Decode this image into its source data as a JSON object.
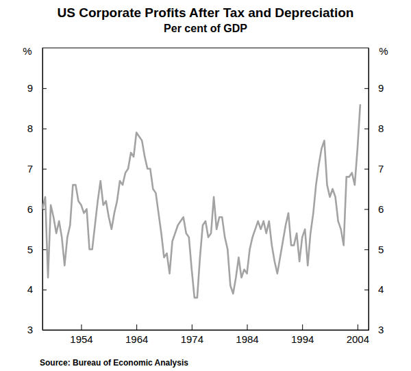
{
  "chart_data": {
    "type": "line",
    "title": "US Corporate Profits After Tax and Depreciation",
    "subtitle": "Per cent of GDP",
    "ylabel": "%",
    "source": "Source: Bureau of Economic Analysis",
    "color": "#a3a3a3",
    "grid": false,
    "xlim": [
      1947,
      2006
    ],
    "xticks": [
      1954,
      1964,
      1974,
      1984,
      1994,
      2004
    ],
    "ylim": [
      3,
      10
    ],
    "yticks": [
      3,
      4,
      5,
      6,
      7,
      8,
      9
    ],
    "x": [
      1947,
      1947.5,
      1948,
      1948.5,
      1949,
      1949.5,
      1950,
      1950.5,
      1951,
      1951.5,
      1952,
      1952.5,
      1953,
      1953.5,
      1954,
      1954.5,
      1955,
      1955.5,
      1956,
      1956.5,
      1957,
      1957.5,
      1958,
      1958.5,
      1959,
      1959.5,
      1960,
      1960.5,
      1961,
      1961.5,
      1962,
      1962.5,
      1963,
      1963.5,
      1964,
      1964.5,
      1965,
      1965.5,
      1966,
      1966.5,
      1967,
      1967.5,
      1968,
      1968.5,
      1969,
      1969.5,
      1970,
      1970.5,
      1971,
      1971.5,
      1972,
      1972.5,
      1973,
      1973.5,
      1974,
      1974.5,
      1975,
      1975.5,
      1976,
      1976.5,
      1977,
      1977.5,
      1978,
      1978.5,
      1979,
      1979.5,
      1980,
      1980.5,
      1981,
      1981.5,
      1982,
      1982.5,
      1983,
      1983.5,
      1984,
      1984.5,
      1985,
      1985.5,
      1986,
      1986.5,
      1987,
      1987.5,
      1988,
      1988.5,
      1989,
      1989.5,
      1990,
      1990.5,
      1991,
      1991.5,
      1992,
      1992.5,
      1993,
      1993.5,
      1994,
      1994.5,
      1995,
      1995.5,
      1996,
      1996.5,
      1997,
      1997.5,
      1998,
      1998.5,
      1999,
      1999.5,
      2000,
      2000.5,
      2001,
      2001.5,
      2002,
      2002.5,
      2003,
      2003.5,
      2004,
      2004.5
    ],
    "values": [
      6.0,
      6.3,
      4.3,
      6.1,
      5.8,
      5.4,
      5.7,
      5.3,
      4.6,
      5.3,
      5.6,
      6.6,
      6.6,
      6.2,
      6.1,
      5.9,
      6.0,
      5.0,
      5.0,
      5.6,
      6.2,
      6.7,
      6.1,
      6.2,
      5.8,
      5.5,
      5.9,
      6.2,
      6.7,
      6.6,
      6.9,
      7.0,
      7.4,
      7.3,
      7.9,
      7.8,
      7.7,
      7.3,
      7.0,
      7.0,
      6.5,
      6.4,
      5.9,
      5.4,
      4.8,
      4.9,
      4.4,
      5.2,
      5.4,
      5.6,
      5.7,
      5.8,
      5.4,
      5.3,
      4.5,
      3.8,
      3.8,
      4.8,
      5.6,
      5.7,
      5.3,
      5.4,
      6.3,
      5.5,
      5.8,
      5.8,
      5.3,
      5.0,
      4.1,
      3.9,
      4.3,
      4.8,
      4.3,
      4.5,
      4.4,
      5.0,
      5.3,
      5.5,
      5.7,
      5.5,
      5.7,
      5.4,
      5.7,
      5.1,
      4.7,
      4.4,
      4.8,
      5.2,
      5.6,
      5.9,
      5.1,
      5.1,
      5.4,
      4.7,
      5.3,
      5.5,
      4.6,
      5.4,
      5.9,
      6.6,
      7.1,
      7.5,
      7.7,
      6.6,
      6.3,
      6.5,
      6.3,
      5.7,
      5.5,
      5.1,
      6.8,
      6.8,
      6.9,
      6.6,
      7.5,
      8.6
    ]
  }
}
